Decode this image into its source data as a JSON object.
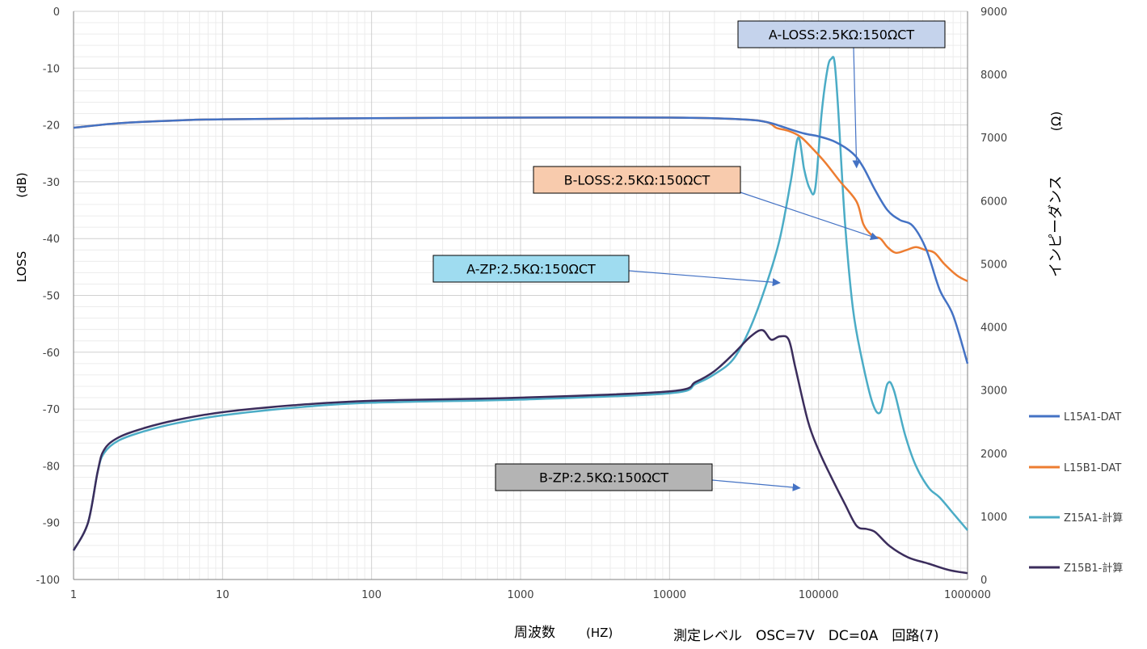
{
  "chart_data": {
    "type": "line",
    "x_scale": "log",
    "xlim": [
      1,
      1000000
    ],
    "x_ticks": [
      "1",
      "10",
      "100",
      "1000",
      "10000",
      "100000",
      "1000000"
    ],
    "xlabel": "周波数",
    "xlabel_unit": "(HZ)",
    "condition_text": "測定レベル　OSC=7V　DC=0A　回路(7)",
    "y_left": {
      "label": "LOSS",
      "unit": "(dB)",
      "lim": [
        -100,
        0
      ],
      "ticks": [
        "0",
        "-10",
        "-20",
        "-30",
        "-40",
        "-50",
        "-60",
        "-70",
        "-80",
        "-90",
        "-100"
      ]
    },
    "y_right": {
      "label": "インピーダンス",
      "unit": "(Ω)",
      "lim": [
        0,
        9000
      ],
      "ticks": [
        "9000",
        "8000",
        "7000",
        "6000",
        "5000",
        "4000",
        "3000",
        "2000",
        "1000",
        "0"
      ]
    },
    "grid": true,
    "legend_position": "right",
    "series": [
      {
        "name": "L15A1-DAT",
        "axis": "left",
        "color": "#4472c4",
        "points": [
          [
            1,
            -20.5
          ],
          [
            2,
            -19.7
          ],
          [
            5,
            -19.2
          ],
          [
            10,
            -19.0
          ],
          [
            100,
            -18.8
          ],
          [
            1000,
            -18.7
          ],
          [
            10000,
            -18.7
          ],
          [
            30000,
            -19.0
          ],
          [
            45000,
            -19.5
          ],
          [
            60000,
            -20.5
          ],
          [
            80000,
            -21.5
          ],
          [
            100000,
            -22.0
          ],
          [
            130000,
            -23.0
          ],
          [
            170000,
            -25.0
          ],
          [
            200000,
            -27.5
          ],
          [
            240000,
            -31.5
          ],
          [
            290000,
            -35.0
          ],
          [
            350000,
            -36.7
          ],
          [
            430000,
            -37.8
          ],
          [
            530000,
            -42.0
          ],
          [
            650000,
            -49.0
          ],
          [
            800000,
            -53.5
          ],
          [
            1000000,
            -62.0
          ]
        ]
      },
      {
        "name": "L15B1-DAT",
        "axis": "left",
        "color": "#ed7d31",
        "points": [
          [
            1,
            -20.5
          ],
          [
            2,
            -19.7
          ],
          [
            5,
            -19.2
          ],
          [
            10,
            -19.0
          ],
          [
            100,
            -18.8
          ],
          [
            1000,
            -18.7
          ],
          [
            10000,
            -18.7
          ],
          [
            30000,
            -19.0
          ],
          [
            45000,
            -19.5
          ],
          [
            52000,
            -20.5
          ],
          [
            62000,
            -21.0
          ],
          [
            75000,
            -22.0
          ],
          [
            90000,
            -24.0
          ],
          [
            110000,
            -26.5
          ],
          [
            140000,
            -30.0
          ],
          [
            180000,
            -33.5
          ],
          [
            200000,
            -37.5
          ],
          [
            230000,
            -39.5
          ],
          [
            260000,
            -40.0
          ],
          [
            290000,
            -41.5
          ],
          [
            330000,
            -42.5
          ],
          [
            390000,
            -42.0
          ],
          [
            450000,
            -41.5
          ],
          [
            520000,
            -42.0
          ],
          [
            600000,
            -42.5
          ],
          [
            700000,
            -44.5
          ],
          [
            850000,
            -46.5
          ],
          [
            1000000,
            -47.5
          ]
        ]
      },
      {
        "name": "Z15A1-計算",
        "axis": "right",
        "color": "#4bacc6",
        "points": [
          [
            1,
            460
          ],
          [
            1.25,
            900
          ],
          [
            1.45,
            1700
          ],
          [
            1.6,
            2000
          ],
          [
            2,
            2200
          ],
          [
            3,
            2350
          ],
          [
            5,
            2480
          ],
          [
            10,
            2600
          ],
          [
            30,
            2720
          ],
          [
            100,
            2800
          ],
          [
            1000,
            2850
          ],
          [
            10000,
            2950
          ],
          [
            15000,
            3100
          ],
          [
            20000,
            3250
          ],
          [
            27000,
            3500
          ],
          [
            35000,
            4000
          ],
          [
            45000,
            4700
          ],
          [
            55000,
            5400
          ],
          [
            65000,
            6300
          ],
          [
            73000,
            7000
          ],
          [
            80000,
            6500
          ],
          [
            87000,
            6200
          ],
          [
            95000,
            6200
          ],
          [
            105000,
            7400
          ],
          [
            115000,
            8100
          ],
          [
            122000,
            8250
          ],
          [
            128000,
            8200
          ],
          [
            135000,
            7500
          ],
          [
            150000,
            5700
          ],
          [
            170000,
            4300
          ],
          [
            195000,
            3500
          ],
          [
            230000,
            2800
          ],
          [
            260000,
            2650
          ],
          [
            290000,
            3100
          ],
          [
            320000,
            3000
          ],
          [
            380000,
            2300
          ],
          [
            450000,
            1800
          ],
          [
            550000,
            1450
          ],
          [
            650000,
            1300
          ],
          [
            800000,
            1050
          ],
          [
            1000000,
            780
          ]
        ]
      },
      {
        "name": "Z15B1-計算",
        "axis": "right",
        "color": "#3b2d5c",
        "points": [
          [
            1,
            460
          ],
          [
            1.25,
            900
          ],
          [
            1.45,
            1700
          ],
          [
            1.6,
            2050
          ],
          [
            2,
            2250
          ],
          [
            3,
            2400
          ],
          [
            5,
            2530
          ],
          [
            10,
            2650
          ],
          [
            30,
            2760
          ],
          [
            100,
            2830
          ],
          [
            1000,
            2880
          ],
          [
            10000,
            2980
          ],
          [
            15000,
            3130
          ],
          [
            20000,
            3300
          ],
          [
            27000,
            3580
          ],
          [
            35000,
            3850
          ],
          [
            42000,
            3950
          ],
          [
            48000,
            3800
          ],
          [
            55000,
            3850
          ],
          [
            63000,
            3800
          ],
          [
            70000,
            3350
          ],
          [
            85000,
            2500
          ],
          [
            100000,
            2050
          ],
          [
            120000,
            1650
          ],
          [
            150000,
            1200
          ],
          [
            180000,
            850
          ],
          [
            210000,
            800
          ],
          [
            240000,
            750
          ],
          [
            300000,
            530
          ],
          [
            400000,
            350
          ],
          [
            550000,
            250
          ],
          [
            750000,
            150
          ],
          [
            1000000,
            100
          ]
        ]
      }
    ],
    "annotations": [
      {
        "text": "A-LOSS:2.5KΩ:150ΩCT",
        "box_color": "#c5d3ec",
        "target": [
          180000,
          -27.5
        ],
        "target_axis": "left"
      },
      {
        "text": "B-LOSS:2.5KΩ:150ΩCT",
        "box_color": "#f8cbad",
        "target": [
          250000,
          5400
        ],
        "target_axis": "right"
      },
      {
        "text": "A-ZP:2.5KΩ:150ΩCT",
        "box_color": "#9fdcf0",
        "target": [
          55000,
          4700
        ],
        "target_axis": "right"
      },
      {
        "text": "B-ZP:2.5KΩ:150ΩCT",
        "box_color": "#b4b4b4",
        "target": [
          75000,
          1450
        ],
        "target_axis": "right"
      }
    ]
  }
}
